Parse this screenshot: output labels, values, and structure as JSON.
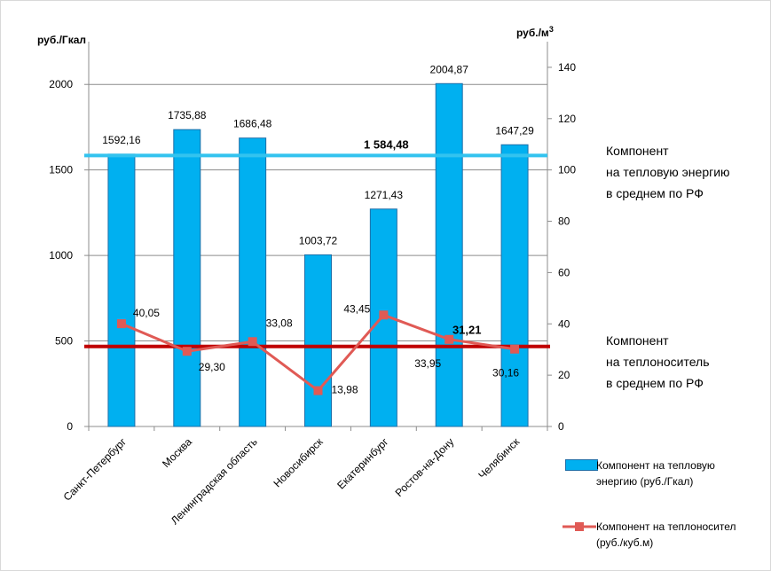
{
  "chart_data": {
    "type": "bar",
    "categories": [
      "Санкт-Петербург",
      "Москва",
      "Ленинградская область",
      "Новосибирск",
      "Екатеринбург",
      "Ростов-на-Дону",
      "Челябинск"
    ],
    "y_left_unit": "руб./Гкал",
    "y_right_unit_base": "руб./м",
    "y_right_unit_sup": "3",
    "ylim_left": [
      0,
      2250
    ],
    "ylim_right": [
      0,
      150
    ],
    "yticks_left": [
      "0",
      "500",
      "1000",
      "1500",
      "2000"
    ],
    "yticks_right": [
      "0",
      "20",
      "40",
      "60",
      "80",
      "100",
      "120",
      "140"
    ],
    "series": [
      {
        "name": "Компонент на тепловую энергию (руб./Гкал)",
        "axis": "left",
        "type": "bar",
        "color": "#00b0f0",
        "values": [
          1592.16,
          1735.88,
          1686.48,
          1003.72,
          1271.43,
          2004.87,
          1647.29
        ],
        "labels": [
          "1592,16",
          "1735,88",
          "1686,48",
          "1003,72",
          "1271,43",
          "2004,87",
          "1647,29"
        ]
      },
      {
        "name": "Компонент на теплоноситель (руб./куб.м)",
        "axis": "right",
        "type": "line",
        "color": "#e05a55",
        "values": [
          40.05,
          29.3,
          33.08,
          13.98,
          43.45,
          33.95,
          30.16
        ],
        "labels": [
          "40,05",
          "29,30",
          "33,08",
          "13,98",
          "43,45",
          "33,95",
          "30,16"
        ]
      }
    ],
    "reference_lines": [
      {
        "axis": "left",
        "value": 1584.48,
        "label": "1 584,48",
        "color": "#33c3ef"
      },
      {
        "axis": "right",
        "value": 31.21,
        "label": "31,21",
        "color": "#c00000"
      }
    ],
    "grid": true,
    "legend_position": "bottom-right"
  },
  "annotations": {
    "energy_note": [
      "Компонент",
      "на тепловую энергию",
      "в среднем по РФ"
    ],
    "carrier_note": [
      "Компонент",
      "на теплоноситель",
      "в среднем по РФ"
    ]
  },
  "legend": {
    "bar_line1": "Компонент на тепловую",
    "bar_line2": "энергию (руб./Гкал)",
    "line_line1": "Компонент  на теплоносител",
    "line_line2": "(руб./куб.м)"
  }
}
